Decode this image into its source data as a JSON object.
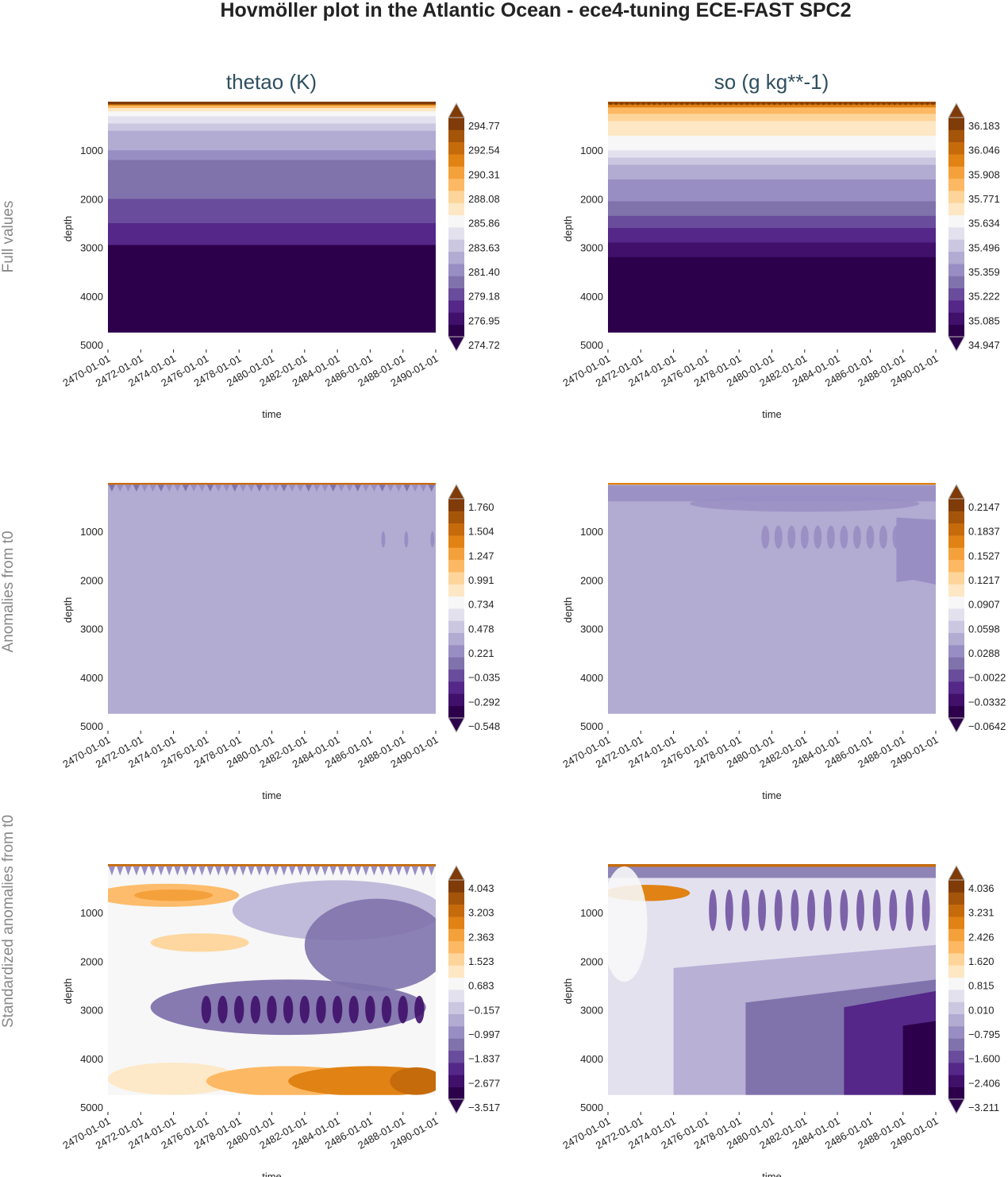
{
  "title": "Hovmöller plot in the Atlantic Ocean - ece4-tuning ECE-FAST SPC2",
  "column_titles": [
    "thetao (K)",
    "so (g kg**-1)"
  ],
  "row_labels": [
    "Full values",
    "Anomalies from t0",
    "Standardized anomalies from t0"
  ],
  "palette": [
    "#2d004b",
    "#40106b",
    "#542788",
    "#6a4c9c",
    "#8073ac",
    "#998ec3",
    "#b2abd2",
    "#cbc7e1",
    "#e4e1ef",
    "#f7f7f7",
    "#fde7c4",
    "#fdd59a",
    "#fdb863",
    "#f4a13c",
    "#e08214",
    "#c66b0c",
    "#a5550a",
    "#7f3b08"
  ],
  "chart_data": [
    {
      "type": "heatmap",
      "id": "thetao-full",
      "row": 0,
      "col": 0,
      "xlabel": "time",
      "ylabel": "depth",
      "x_ticks": [
        "2470-01-01",
        "2472-01-01",
        "2474-01-01",
        "2476-01-01",
        "2478-01-01",
        "2480-01-01",
        "2482-01-01",
        "2484-01-01",
        "2486-01-01",
        "2488-01-01",
        "2490-01-01"
      ],
      "y_ticks": [
        "1000",
        "2000",
        "3000",
        "4000",
        "5000"
      ],
      "ylim": [
        0,
        5000
      ],
      "data_depth_max": 4750,
      "colorbar_ticks": [
        "294.77",
        "292.54",
        "290.31",
        "288.08",
        "285.86",
        "283.63",
        "281.40",
        "279.18",
        "276.95",
        "274.72"
      ],
      "depth_bands": [
        [
          0,
          40,
          17
        ],
        [
          40,
          80,
          14
        ],
        [
          80,
          130,
          12
        ],
        [
          130,
          200,
          10
        ],
        [
          200,
          300,
          9
        ],
        [
          300,
          450,
          8
        ],
        [
          450,
          600,
          7
        ],
        [
          600,
          750,
          6
        ],
        [
          750,
          1000,
          6
        ],
        [
          1000,
          1200,
          5
        ],
        [
          1200,
          1450,
          4
        ],
        [
          1450,
          2000,
          4
        ],
        [
          2000,
          2500,
          3
        ],
        [
          2500,
          2950,
          2
        ],
        [
          2950,
          4750,
          0
        ]
      ]
    },
    {
      "type": "heatmap",
      "id": "so-full",
      "row": 0,
      "col": 1,
      "xlabel": "time",
      "ylabel": "depth",
      "x_ticks": [
        "2470-01-01",
        "2472-01-01",
        "2474-01-01",
        "2476-01-01",
        "2478-01-01",
        "2480-01-01",
        "2482-01-01",
        "2484-01-01",
        "2486-01-01",
        "2488-01-01",
        "2490-01-01"
      ],
      "y_ticks": [
        "1000",
        "2000",
        "3000",
        "4000",
        "5000"
      ],
      "ylim": [
        0,
        5000
      ],
      "data_depth_max": 4750,
      "colorbar_ticks": [
        "36.183",
        "36.046",
        "35.908",
        "35.771",
        "35.634",
        "35.496",
        "35.359",
        "35.222",
        "35.085",
        "34.947"
      ],
      "depth_bands": [
        [
          0,
          60,
          16
        ],
        [
          60,
          120,
          14
        ],
        [
          120,
          250,
          12
        ],
        [
          250,
          400,
          11
        ],
        [
          400,
          500,
          10
        ],
        [
          500,
          700,
          10
        ],
        [
          700,
          850,
          9
        ],
        [
          850,
          1000,
          9
        ],
        [
          1000,
          1150,
          8
        ],
        [
          1150,
          1300,
          7
        ],
        [
          1300,
          1600,
          6
        ],
        [
          1600,
          2050,
          5
        ],
        [
          2050,
          2350,
          4
        ],
        [
          2350,
          2600,
          3
        ],
        [
          2600,
          2900,
          2
        ],
        [
          2900,
          3200,
          1
        ],
        [
          3200,
          4750,
          0
        ]
      ]
    },
    {
      "type": "heatmap",
      "id": "thetao-anom",
      "row": 1,
      "col": 0,
      "xlabel": "time",
      "ylabel": "depth",
      "x_ticks": [
        "2470-01-01",
        "2472-01-01",
        "2474-01-01",
        "2476-01-01",
        "2478-01-01",
        "2480-01-01",
        "2482-01-01",
        "2484-01-01",
        "2486-01-01",
        "2488-01-01",
        "2490-01-01"
      ],
      "y_ticks": [
        "1000",
        "2000",
        "3000",
        "4000",
        "5000"
      ],
      "ylim": [
        0,
        5000
      ],
      "data_depth_max": 4750,
      "colorbar_ticks": [
        "1.760",
        "1.504",
        "1.247",
        "0.991",
        "0.734",
        "0.478",
        "0.221",
        "−0.035",
        "−0.292",
        "−0.548"
      ],
      "depth_bands": [
        [
          0,
          4750,
          6
        ]
      ]
    },
    {
      "type": "heatmap",
      "id": "so-anom",
      "row": 1,
      "col": 1,
      "xlabel": "time",
      "ylabel": "depth",
      "x_ticks": [
        "2470-01-01",
        "2472-01-01",
        "2474-01-01",
        "2476-01-01",
        "2478-01-01",
        "2480-01-01",
        "2482-01-01",
        "2484-01-01",
        "2486-01-01",
        "2488-01-01",
        "2490-01-01"
      ],
      "y_ticks": [
        "1000",
        "2000",
        "3000",
        "4000",
        "5000"
      ],
      "ylim": [
        0,
        5000
      ],
      "data_depth_max": 4750,
      "colorbar_ticks": [
        "0.2147",
        "0.1837",
        "0.1527",
        "0.1217",
        "0.0907",
        "0.0598",
        "0.0288",
        "−0.0022",
        "−0.0332",
        "−0.0642"
      ],
      "depth_bands": [
        [
          0,
          4750,
          6
        ]
      ]
    },
    {
      "type": "heatmap",
      "id": "thetao-std",
      "row": 2,
      "col": 0,
      "xlabel": "time",
      "ylabel": "depth",
      "x_ticks": [
        "2470-01-01",
        "2472-01-01",
        "2474-01-01",
        "2476-01-01",
        "2478-01-01",
        "2480-01-01",
        "2482-01-01",
        "2484-01-01",
        "2486-01-01",
        "2488-01-01",
        "2490-01-01"
      ],
      "y_ticks": [
        "1000",
        "2000",
        "3000",
        "4000",
        "5000"
      ],
      "ylim": [
        0,
        5000
      ],
      "data_depth_max": 4750,
      "colorbar_ticks": [
        "4.043",
        "3.203",
        "2.363",
        "1.523",
        "0.683",
        "−0.157",
        "−0.997",
        "−1.837",
        "−2.677",
        "−3.517"
      ],
      "depth_bands": [
        [
          0,
          4750,
          9
        ]
      ]
    },
    {
      "type": "heatmap",
      "id": "so-std",
      "row": 2,
      "col": 1,
      "xlabel": "time",
      "ylabel": "depth",
      "x_ticks": [
        "2470-01-01",
        "2472-01-01",
        "2474-01-01",
        "2476-01-01",
        "2478-01-01",
        "2480-01-01",
        "2482-01-01",
        "2484-01-01",
        "2486-01-01",
        "2488-01-01",
        "2490-01-01"
      ],
      "y_ticks": [
        "1000",
        "2000",
        "3000",
        "4000",
        "5000"
      ],
      "ylim": [
        0,
        5000
      ],
      "data_depth_max": 4750,
      "colorbar_ticks": [
        "4.036",
        "3.231",
        "2.426",
        "1.620",
        "0.815",
        "0.010",
        "−0.795",
        "−1.600",
        "−2.406",
        "−3.211"
      ],
      "depth_bands": [
        [
          0,
          4750,
          8
        ]
      ]
    }
  ]
}
